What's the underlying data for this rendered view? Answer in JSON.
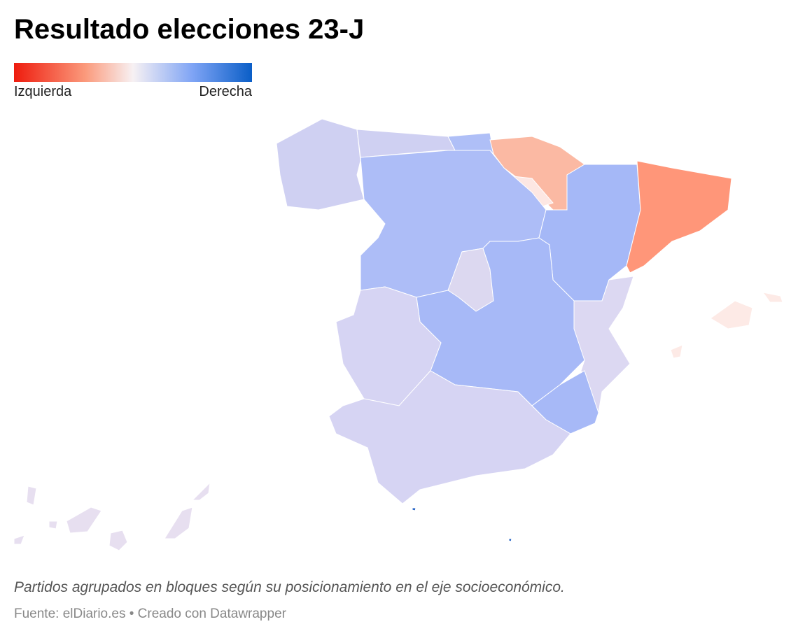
{
  "header": {
    "title": "Resultado elecciones 23-J"
  },
  "legend": {
    "left": "Izquierda",
    "right": "Derecha"
  },
  "footer": {
    "note": "Partidos agrupados en bloques según su posicionamiento en el eje socioeconómico.",
    "source": "Fuente: elDiario.es • Creado con Datawrapper"
  }
}
